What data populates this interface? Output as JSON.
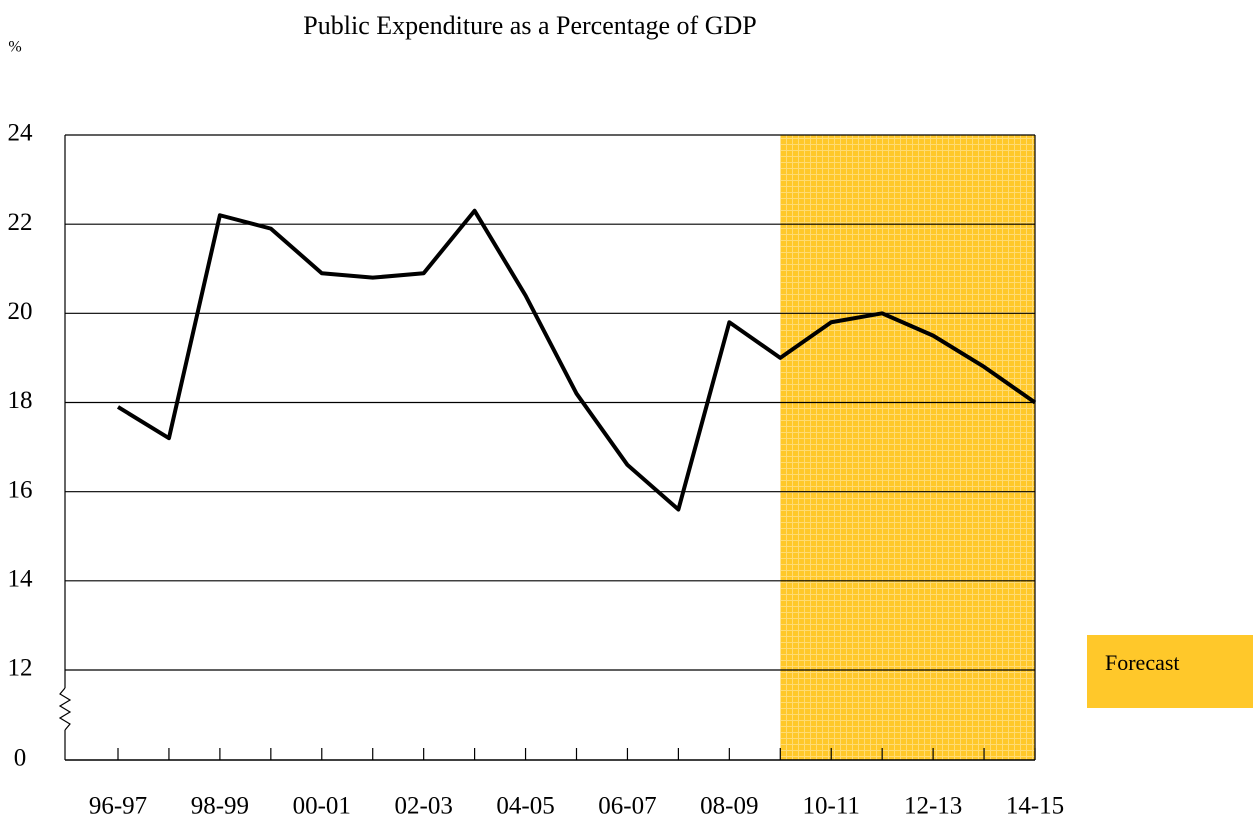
{
  "chart_data": {
    "type": "line",
    "title": "Public Expenditure as a Percentage of GDP",
    "y_label": "%",
    "categories": [
      "96-97",
      null,
      "98-99",
      null,
      "00-01",
      null,
      "02-03",
      null,
      "04-05",
      null,
      "06-07",
      null,
      "08-09",
      null,
      "10-11",
      null,
      "12-13",
      null,
      "14-15"
    ],
    "series": [
      {
        "color": "#000000",
        "values": [
          17.9,
          17.2,
          22.2,
          21.9,
          20.9,
          20.8,
          20.9,
          22.3,
          20.4,
          18.2,
          16.6,
          15.6,
          19.8,
          19.0,
          19.8,
          20.0,
          19.5,
          18.8,
          18.0
        ]
      }
    ],
    "ylim": [
      0,
      24
    ],
    "y_break": [
      0,
      12
    ],
    "yticks": [
      0,
      12,
      14,
      16,
      18,
      20,
      22,
      24
    ],
    "grid": true,
    "shade": {
      "label": "Forecast",
      "color": "#ffc82a",
      "from": 13,
      "to": 18
    },
    "legend": "right"
  }
}
